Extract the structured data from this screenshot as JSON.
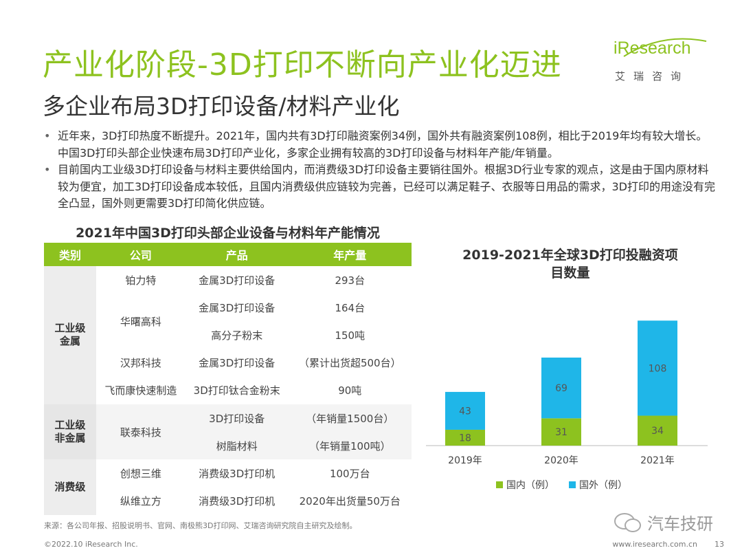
{
  "header": {
    "title": "产业化阶段-3D打印不断向产业化迈进",
    "subtitle": "多企业布局3D打印设备/材料产业化",
    "logo_text": "iResearch",
    "logo_sub": "艾瑞咨询"
  },
  "bullets": [
    "近年来，3D打印热度不断提升。2021年，国内共有3D打印融资案例34例，国外共有融资案例108例，相比于2019年均有较大增长。中国3D打印头部企业快速布局3D打印产业化，多家企业拥有较高的3D打印设备与材料年产能/年销量。",
    "目前国内工业级3D打印设备与材料主要供给国内，而消费级3D打印设备主要销往国外。根据3D行业专家的观点，这是由于国内原材料较为便宜，加工3D打印设备成本较低，且国内消费级供应链较为完善，已经可以满足鞋子、衣服等日用品的需求，3D打印的用途没有完全凸显，国外则更需要3D打印简化供应链。"
  ],
  "table": {
    "title": "2021年中国3D打印头部企业设备与材料年产能情况",
    "headers": [
      "类别",
      "公司",
      "产品",
      "年产量"
    ],
    "groups": [
      {
        "category": "工业级\n金属",
        "companies": [
          {
            "name": "铂力特",
            "rows": [
              {
                "product": "金属3D打印设备",
                "output": "293台"
              }
            ]
          },
          {
            "name": "华曙高科",
            "rows": [
              {
                "product": "金属3D打印设备",
                "output": "164台"
              },
              {
                "product": "高分子粉末",
                "output": "150吨"
              }
            ]
          },
          {
            "name": "汉邦科技",
            "rows": [
              {
                "product": "金属3D打印设备",
                "output": "（累计出货超500台）"
              }
            ]
          },
          {
            "name": "飞而康快速制造",
            "rows": [
              {
                "product": "3D打印钛合金粉末",
                "output": "90吨"
              }
            ]
          }
        ]
      },
      {
        "category": "工业级\n非金属",
        "companies": [
          {
            "name": "联泰科技",
            "rows": [
              {
                "product": "3D打印设备",
                "output": "（年销量1500台）"
              },
              {
                "product": "树脂材料",
                "output": "（年销量100吨）"
              }
            ]
          }
        ]
      },
      {
        "category": "消费级",
        "companies": [
          {
            "name": "创想三维",
            "rows": [
              {
                "product": "消费级3D打印机",
                "output": "100万台"
              }
            ]
          },
          {
            "name": "纵维立方",
            "rows": [
              {
                "product": "消费级3D打印机",
                "output": "2020年出货量50万台"
              }
            ]
          }
        ]
      }
    ]
  },
  "chart_data": {
    "type": "bar",
    "stacked": true,
    "title": "2019-2021年全球3D打印投融资项目数量",
    "categories": [
      "2019年",
      "2020年",
      "2021年"
    ],
    "series": [
      {
        "name": "国内（例）",
        "values": [
          18,
          31,
          34
        ],
        "color": "#8dc21f"
      },
      {
        "name": "国外（例）",
        "values": [
          43,
          69,
          108
        ],
        "color": "#1fb6e8"
      }
    ],
    "legend_position": "bottom",
    "grid": false
  },
  "footer": {
    "source": "来源：各公司年报、招股说明书、官网、南极熊3D打印网、艾瑞咨询研究院自主研究及绘制。",
    "copyright": "©2022.10 iResearch Inc.",
    "site": "www.iresearch.com.cn",
    "page": "13",
    "watermark": "汽车技研"
  }
}
